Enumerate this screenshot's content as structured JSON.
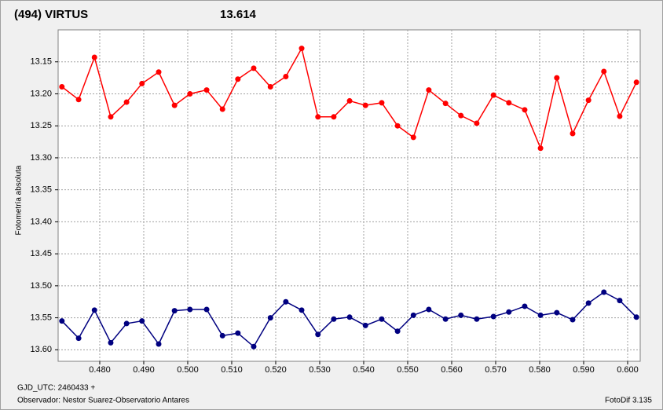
{
  "chart_data": {
    "type": "line",
    "title": "(494) VIRTUS",
    "title_color": "#ff0000",
    "comparison_magnitude": "13.614",
    "comparison_color": "#000080",
    "ylabel": "Fotometría absoluta",
    "footer_left_1": "GJD_UTC: 2460433 +",
    "footer_left_2": "Observador: Nestor Suarez-Observatorio Antares",
    "footer_right": "FotoDif 3.135",
    "grid": true,
    "y_inverted": true,
    "xlim": [
      0.47054,
      0.60286
    ],
    "ylim": [
      13.1,
      13.618
    ],
    "xticks": [
      {
        "value": 0.48,
        "label": "0.480"
      },
      {
        "value": 0.49,
        "label": "0.490"
      },
      {
        "value": 0.5,
        "label": "0.500"
      },
      {
        "value": 0.51,
        "label": "0.510"
      },
      {
        "value": 0.52,
        "label": "0.520"
      },
      {
        "value": 0.53,
        "label": "0.530"
      },
      {
        "value": 0.54,
        "label": "0.540"
      },
      {
        "value": 0.55,
        "label": "0.550"
      },
      {
        "value": 0.56,
        "label": "0.560"
      },
      {
        "value": 0.57,
        "label": "0.570"
      },
      {
        "value": 0.58,
        "label": "0.580"
      },
      {
        "value": 0.59,
        "label": "0.590"
      },
      {
        "value": 0.6,
        "label": "0.600"
      }
    ],
    "yticks": [
      13.15,
      {
        "value": 13.2,
        "label": "13.20"
      },
      13.25,
      {
        "value": 13.3,
        "label": "13.30"
      },
      13.35,
      {
        "value": 13.4,
        "label": "13.40"
      },
      13.45,
      {
        "value": 13.5,
        "label": "13.50"
      },
      13.55,
      {
        "value": 13.6,
        "label": "13.60"
      }
    ],
    "x": [
      0.4714,
      0.4752,
      0.4788,
      0.4825,
      0.4861,
      0.4896,
      0.4934,
      0.497,
      0.5005,
      0.5043,
      0.5079,
      0.5114,
      0.515,
      0.5188,
      0.5223,
      0.5259,
      0.5296,
      0.5332,
      0.5368,
      0.5404,
      0.5441,
      0.5477,
      0.5513,
      0.5548,
      0.5586,
      0.5621,
      0.5657,
      0.5695,
      0.573,
      0.5766,
      0.5802,
      0.5839,
      0.5875,
      0.5911,
      0.5946,
      0.5982,
      0.602
    ],
    "series": [
      {
        "color": "#ff0000",
        "values": [
          13.189,
          13.209,
          13.143,
          13.236,
          13.213,
          13.184,
          13.166,
          13.218,
          13.2,
          13.194,
          13.224,
          13.177,
          13.16,
          13.189,
          13.173,
          13.129,
          13.236,
          13.236,
          13.211,
          13.218,
          13.214,
          13.25,
          13.268,
          13.194,
          13.215,
          13.234,
          13.246,
          13.202,
          13.214,
          13.225,
          13.285,
          13.175,
          13.262,
          13.21,
          13.165,
          13.235,
          13.182
        ]
      },
      {
        "color": "#000080",
        "values": [
          13.555,
          13.582,
          13.538,
          13.589,
          13.559,
          13.555,
          13.591,
          13.539,
          13.537,
          13.537,
          13.578,
          13.574,
          13.595,
          13.55,
          13.525,
          13.538,
          13.576,
          13.552,
          13.549,
          13.562,
          13.552,
          13.571,
          13.546,
          13.537,
          13.552,
          13.546,
          13.552,
          13.548,
          13.541,
          13.532,
          13.546,
          13.542,
          13.553,
          13.527,
          13.51,
          13.523,
          13.549
        ]
      }
    ]
  }
}
